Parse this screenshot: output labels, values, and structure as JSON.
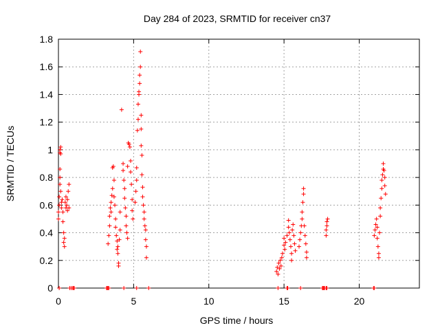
{
  "chart_data": {
    "type": "scatter",
    "title": "Day 284 of 2023, SRMTID for receiver cn37",
    "xlabel": "GPS time / hours",
    "ylabel": "SRMTID / TECUs",
    "xlim": [
      0,
      24
    ],
    "ylim": [
      0,
      1.8
    ],
    "x_ticks": [
      0,
      5,
      10,
      15,
      20
    ],
    "x_tick_labels": [
      "0",
      "5",
      "10",
      "15",
      "20"
    ],
    "y_ticks": [
      0,
      0.2,
      0.4,
      0.6,
      0.8,
      1,
      1.2,
      1.4,
      1.6,
      1.8
    ],
    "y_tick_labels": [
      "0",
      "0.2",
      "0.4",
      "0.6",
      "0.8",
      "1",
      "1.2",
      "1.4",
      "1.6",
      "1.8"
    ],
    "grid": true,
    "marker": "+",
    "color": "#ff0000",
    "series": [
      {
        "name": "SRMTID",
        "points": [
          [
            0.0,
            0.5
          ],
          [
            0.0,
            0.55
          ],
          [
            0.05,
            0.6
          ],
          [
            0.05,
            0.66
          ],
          [
            0.1,
            0.75
          ],
          [
            0.1,
            0.8
          ],
          [
            0.1,
            0.86
          ],
          [
            0.1,
            0.98
          ],
          [
            0.1,
            1.0
          ],
          [
            0.15,
            1.02
          ],
          [
            0.15,
            0.97
          ],
          [
            0.15,
            0.7
          ],
          [
            0.2,
            0.62
          ],
          [
            0.2,
            0.58
          ],
          [
            0.25,
            0.64
          ],
          [
            0.3,
            0.55
          ],
          [
            0.3,
            0.48
          ],
          [
            0.35,
            0.4
          ],
          [
            0.35,
            0.33
          ],
          [
            0.4,
            0.3
          ],
          [
            0.4,
            0.36
          ],
          [
            0.45,
            0.62
          ],
          [
            0.5,
            0.58
          ],
          [
            0.5,
            0.66
          ],
          [
            0.55,
            0.6
          ],
          [
            0.6,
            0.56
          ],
          [
            0.6,
            0.64
          ],
          [
            0.65,
            0.7
          ],
          [
            0.7,
            0.75
          ],
          [
            0.7,
            0.58
          ],
          [
            3.3,
            0.32
          ],
          [
            3.35,
            0.38
          ],
          [
            3.4,
            0.45
          ],
          [
            3.4,
            0.52
          ],
          [
            3.45,
            0.58
          ],
          [
            3.5,
            0.62
          ],
          [
            3.5,
            0.55
          ],
          [
            3.55,
            0.67
          ],
          [
            3.6,
            0.72
          ],
          [
            3.6,
            0.87
          ],
          [
            3.65,
            0.88
          ],
          [
            3.7,
            0.78
          ],
          [
            3.7,
            0.66
          ],
          [
            3.75,
            0.6
          ],
          [
            3.8,
            0.5
          ],
          [
            3.8,
            0.44
          ],
          [
            3.85,
            0.38
          ],
          [
            3.9,
            0.34
          ],
          [
            3.9,
            0.28
          ],
          [
            3.95,
            0.25
          ],
          [
            3.95,
            0.3
          ],
          [
            4.0,
            0.18
          ],
          [
            4.0,
            0.16
          ],
          [
            4.05,
            0.35
          ],
          [
            4.1,
            0.42
          ],
          [
            4.1,
            0.55
          ],
          [
            4.2,
            1.29
          ],
          [
            4.3,
            0.9
          ],
          [
            4.3,
            0.85
          ],
          [
            4.35,
            0.78
          ],
          [
            4.4,
            0.72
          ],
          [
            4.4,
            0.65
          ],
          [
            4.45,
            0.58
          ],
          [
            4.5,
            0.52
          ],
          [
            4.5,
            0.45
          ],
          [
            4.55,
            0.4
          ],
          [
            4.6,
            0.36
          ],
          [
            4.6,
            0.88
          ],
          [
            4.65,
            1.05
          ],
          [
            4.7,
            1.04
          ],
          [
            4.75,
            1.02
          ],
          [
            4.8,
            0.92
          ],
          [
            4.8,
            0.84
          ],
          [
            4.85,
            0.75
          ],
          [
            4.9,
            0.64
          ],
          [
            4.9,
            0.56
          ],
          [
            4.95,
            0.5
          ],
          [
            5.1,
            0.62
          ],
          [
            5.15,
            0.7
          ],
          [
            5.2,
            0.78
          ],
          [
            5.2,
            0.87
          ],
          [
            5.25,
            1.14
          ],
          [
            5.3,
            1.22
          ],
          [
            5.3,
            1.33
          ],
          [
            5.35,
            1.4
          ],
          [
            5.35,
            1.42
          ],
          [
            5.4,
            1.48
          ],
          [
            5.4,
            1.54
          ],
          [
            5.45,
            1.6
          ],
          [
            5.45,
            1.71
          ],
          [
            5.5,
            1.25
          ],
          [
            5.5,
            1.15
          ],
          [
            5.5,
            1.03
          ],
          [
            5.55,
            0.96
          ],
          [
            5.55,
            0.82
          ],
          [
            5.6,
            0.73
          ],
          [
            5.6,
            0.66
          ],
          [
            5.65,
            0.6
          ],
          [
            5.7,
            0.55
          ],
          [
            5.7,
            0.5
          ],
          [
            5.75,
            0.45
          ],
          [
            5.8,
            0.42
          ],
          [
            5.8,
            0.35
          ],
          [
            5.85,
            0.3
          ],
          [
            5.85,
            0.22
          ],
          [
            14.5,
            0.12
          ],
          [
            14.55,
            0.15
          ],
          [
            14.6,
            0.1
          ],
          [
            14.65,
            0.18
          ],
          [
            14.7,
            0.14
          ],
          [
            14.75,
            0.2
          ],
          [
            14.8,
            0.16
          ],
          [
            14.85,
            0.22
          ],
          [
            14.9,
            0.25
          ],
          [
            15.0,
            0.31
          ],
          [
            15.0,
            0.36
          ],
          [
            15.05,
            0.28
          ],
          [
            15.1,
            0.33
          ],
          [
            15.2,
            0.38
          ],
          [
            15.3,
            0.44
          ],
          [
            15.3,
            0.49
          ],
          [
            15.35,
            0.4
          ],
          [
            15.4,
            0.35
          ],
          [
            15.45,
            0.3
          ],
          [
            15.5,
            0.25
          ],
          [
            15.5,
            0.2
          ],
          [
            15.55,
            0.42
          ],
          [
            15.6,
            0.46
          ],
          [
            15.65,
            0.38
          ],
          [
            15.7,
            0.32
          ],
          [
            15.75,
            0.27
          ],
          [
            16.0,
            0.3
          ],
          [
            16.05,
            0.35
          ],
          [
            16.1,
            0.4
          ],
          [
            16.15,
            0.45
          ],
          [
            16.2,
            0.5
          ],
          [
            16.2,
            0.55
          ],
          [
            16.25,
            0.62
          ],
          [
            16.3,
            0.68
          ],
          [
            16.3,
            0.72
          ],
          [
            16.35,
            0.45
          ],
          [
            16.4,
            0.38
          ],
          [
            16.45,
            0.32
          ],
          [
            16.5,
            0.26
          ],
          [
            16.5,
            0.22
          ],
          [
            17.8,
            0.38
          ],
          [
            17.8,
            0.42
          ],
          [
            17.85,
            0.45
          ],
          [
            17.85,
            0.48
          ],
          [
            17.9,
            0.5
          ],
          [
            21.0,
            0.38
          ],
          [
            21.05,
            0.42
          ],
          [
            21.1,
            0.46
          ],
          [
            21.15,
            0.5
          ],
          [
            21.2,
            0.44
          ],
          [
            21.2,
            0.36
          ],
          [
            21.25,
            0.3
          ],
          [
            21.3,
            0.25
          ],
          [
            21.3,
            0.22
          ],
          [
            21.35,
            0.4
          ],
          [
            21.4,
            0.52
          ],
          [
            21.4,
            0.58
          ],
          [
            21.45,
            0.65
          ],
          [
            21.5,
            0.72
          ],
          [
            21.5,
            0.78
          ],
          [
            21.55,
            0.82
          ],
          [
            21.6,
            0.86
          ],
          [
            21.6,
            0.9
          ],
          [
            21.65,
            0.85
          ],
          [
            21.7,
            0.8
          ],
          [
            21.7,
            0.74
          ],
          [
            21.75,
            0.68
          ]
        ],
        "zero_marks": [
          0.05,
          0.75,
          0.85,
          0.95,
          1.0,
          1.05,
          3.2,
          3.25,
          3.3,
          3.35,
          4.35,
          5.2,
          6.0,
          14.6,
          15.2,
          15.25,
          16.1,
          17.55,
          17.6,
          17.65,
          17.7,
          17.8,
          17.85,
          20.95,
          21.0
        ]
      }
    ]
  }
}
